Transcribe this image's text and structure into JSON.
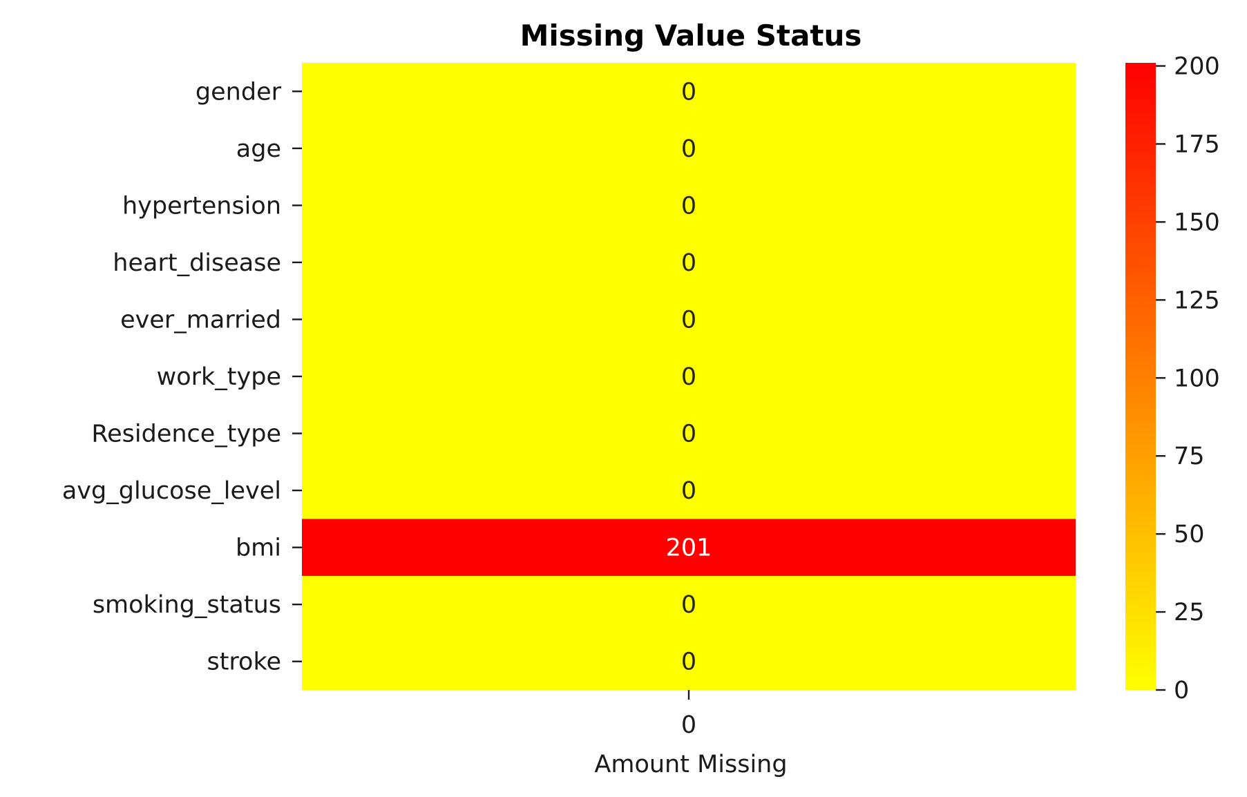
{
  "chart_data": {
    "type": "heatmap",
    "title": "Missing Value Status",
    "xlabel": "Amount Missing",
    "ylabel": "",
    "x_categories": [
      "0"
    ],
    "y_categories": [
      "gender",
      "age",
      "hypertension",
      "heart_disease",
      "ever_married",
      "work_type",
      "Residence_type",
      "avg_glucose_level",
      "bmi",
      "smoking_status",
      "stroke"
    ],
    "values": [
      0,
      0,
      0,
      0,
      0,
      0,
      0,
      0,
      201,
      0,
      0
    ],
    "annotations": [
      "0",
      "0",
      "0",
      "0",
      "0",
      "0",
      "0",
      "0",
      "201",
      "0",
      "0"
    ],
    "colormap": {
      "low": "#ffff00",
      "high": "#ff0000"
    },
    "colorbar": {
      "range": [
        0,
        201
      ],
      "ticks": [
        0,
        25,
        50,
        75,
        100,
        125,
        150,
        175,
        200
      ],
      "tick_labels": [
        "0",
        "25",
        "50",
        "75",
        "100",
        "125",
        "150",
        "175",
        "200"
      ]
    },
    "grid": false,
    "legend": "colorbar-right"
  }
}
